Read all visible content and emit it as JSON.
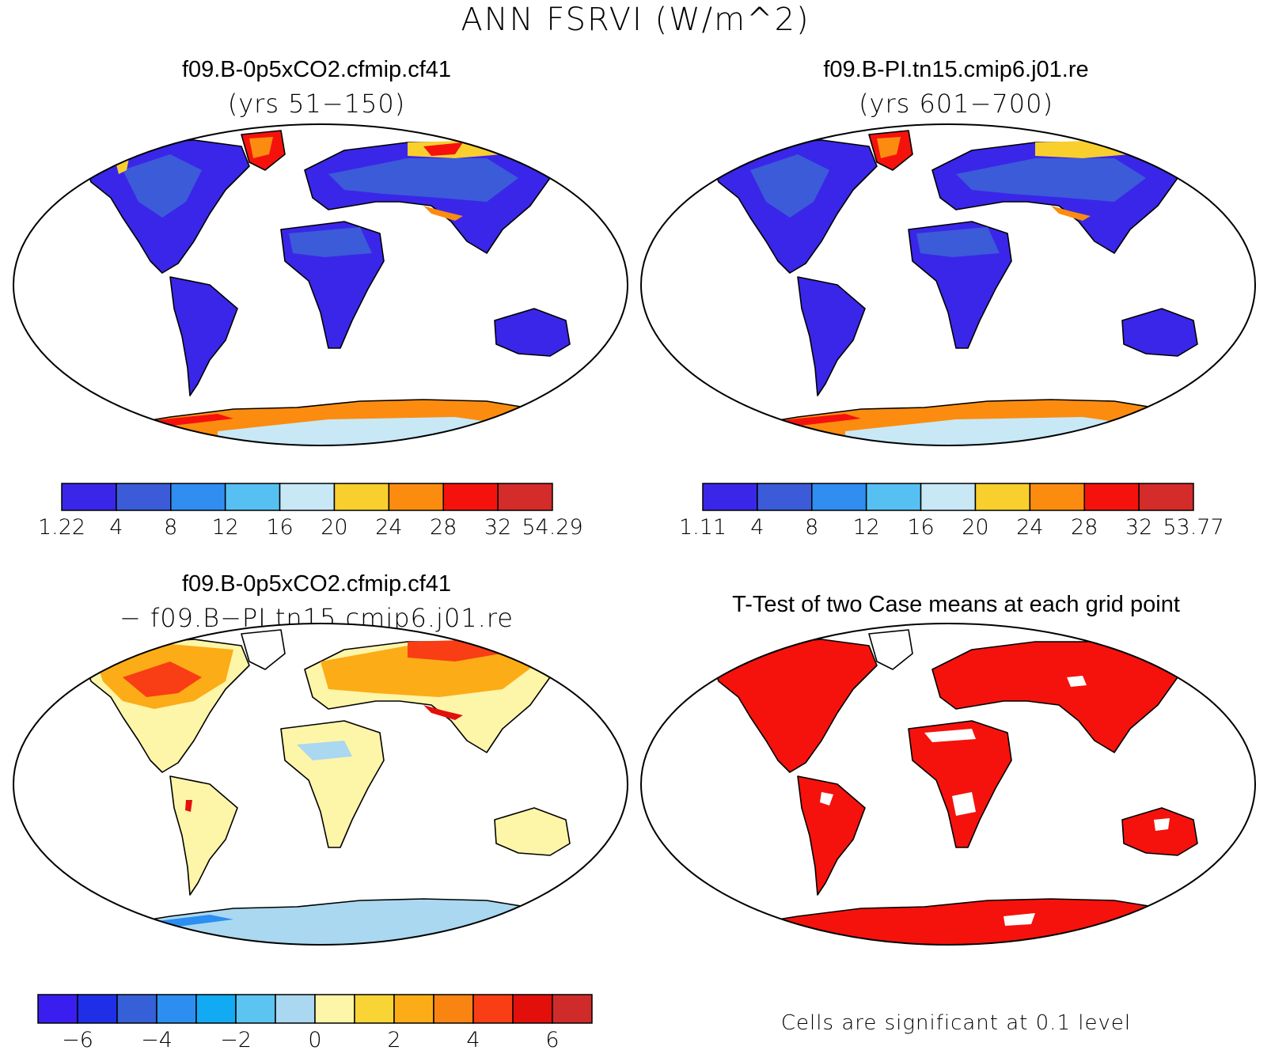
{
  "title": "ANN FSRVI (W/m^2)",
  "panels": {
    "top_left": {
      "title": "f09.B-0p5xCO2.cfmip.cf41",
      "subtitle": "(yrs 51−150)",
      "colorbar": {
        "labels": [
          "1.22",
          "4",
          "8",
          "12",
          "16",
          "20",
          "24",
          "28",
          "32",
          "54.29"
        ],
        "colors": [
          "#3a26e8",
          "#3b5bd9",
          "#2f8ef0",
          "#56c0f2",
          "#c8e8f6",
          "#f9cf2e",
          "#fb8c10",
          "#f5120c",
          "#d42b2b"
        ]
      }
    },
    "top_right": {
      "title": "f09.B-PI.tn15.cmip6.j01.re",
      "subtitle": "(yrs 601−700)",
      "colorbar": {
        "labels": [
          "1.11",
          "4",
          "8",
          "12",
          "16",
          "20",
          "24",
          "28",
          "32",
          "53.77"
        ],
        "colors": [
          "#3a26e8",
          "#3b5bd9",
          "#2f8ef0",
          "#56c0f2",
          "#c8e8f6",
          "#f9cf2e",
          "#fb8c10",
          "#f5120c",
          "#d42b2b"
        ]
      }
    },
    "bottom_left": {
      "title": "f09.B-0p5xCO2.cfmip.cf41",
      "subtitle": "− f09.B−PI.tn15.cmip6.j01.re",
      "colorbar": {
        "labels": [
          "−6",
          "−4",
          "−2",
          "0",
          "2",
          "4",
          "6"
        ],
        "colors": [
          "#3a1ef0",
          "#1f2fe8",
          "#3560d8",
          "#2b8ef0",
          "#12aaf2",
          "#5cc4f0",
          "#a9d8f0",
          "#fdf5a8",
          "#f9d435",
          "#fbac16",
          "#f98412",
          "#f93d14",
          "#e20f0a",
          "#d02b2b"
        ]
      }
    },
    "bottom_right": {
      "title": "T-Test of two Case means at each grid point",
      "note": "Cells are significant at 0.1 level"
    }
  }
}
